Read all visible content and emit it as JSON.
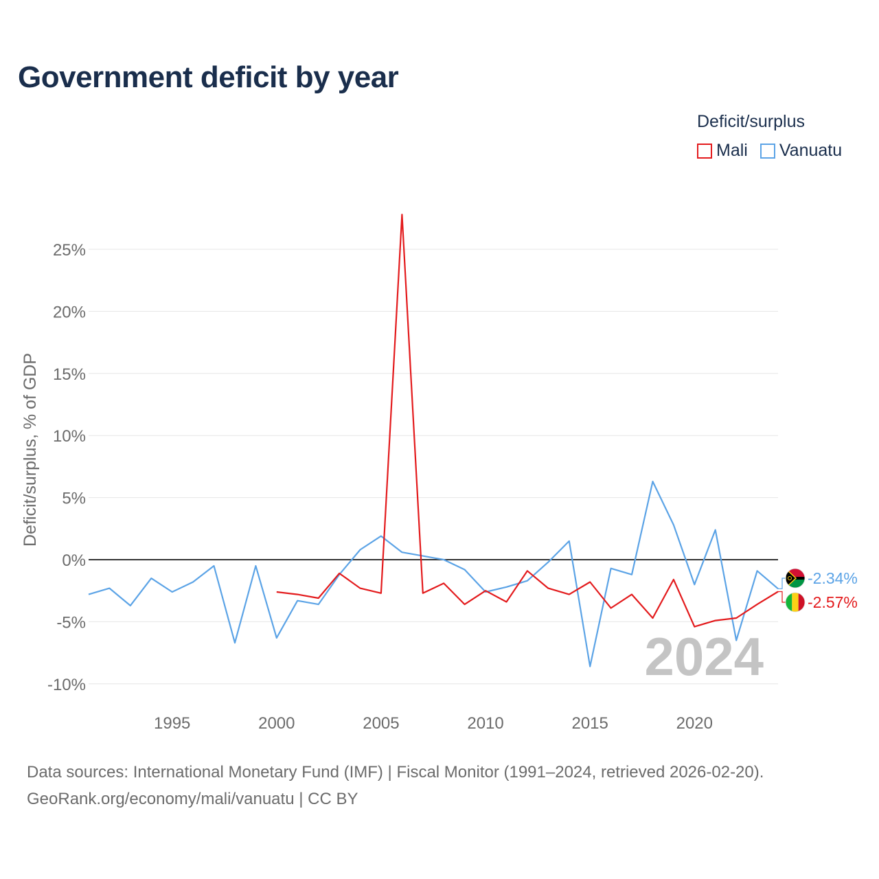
{
  "title": "Government deficit by year",
  "legend": {
    "title": "Deficit/surplus",
    "items": [
      {
        "name": "Mali",
        "color": "#e31a1c"
      },
      {
        "name": "Vanuatu",
        "color": "#5ba3e6"
      }
    ]
  },
  "chart_data": {
    "type": "line",
    "title": "Government deficit by year",
    "xlabel": "",
    "ylabel": "Deficit/surplus, % of GDP",
    "xlim": [
      1991,
      2024
    ],
    "ylim": [
      -10,
      30
    ],
    "x_ticks": [
      1995,
      2000,
      2005,
      2010,
      2015,
      2020
    ],
    "y_ticks": [
      -10,
      -5,
      0,
      5,
      10,
      15,
      20,
      25
    ],
    "y_tick_labels": [
      "-10%",
      "-5%",
      "0%",
      "5%",
      "10%",
      "15%",
      "20%",
      "25%"
    ],
    "zero_line": true,
    "watermark_year": "2024",
    "series": [
      {
        "name": "Vanuatu",
        "color": "#5ba3e6",
        "x": [
          1991,
          1992,
          1993,
          1994,
          1995,
          1996,
          1997,
          1998,
          1999,
          2000,
          2001,
          2002,
          2003,
          2004,
          2005,
          2006,
          2007,
          2008,
          2009,
          2010,
          2011,
          2012,
          2013,
          2014,
          2015,
          2016,
          2017,
          2018,
          2019,
          2020,
          2021,
          2022,
          2023,
          2024
        ],
        "values": [
          -2.8,
          -2.3,
          -3.7,
          -1.5,
          -2.6,
          -1.8,
          -0.5,
          -6.7,
          -0.5,
          -6.3,
          -3.3,
          -3.6,
          -1.2,
          0.8,
          1.9,
          0.6,
          0.3,
          0.0,
          -0.8,
          -2.6,
          -2.2,
          -1.7,
          -0.2,
          1.5,
          -8.6,
          -0.7,
          -1.2,
          6.3,
          2.8,
          -2.0,
          2.4,
          -6.5,
          -0.9,
          -2.34
        ],
        "end_label": "-2.34%"
      },
      {
        "name": "Mali",
        "color": "#e31a1c",
        "x": [
          2000,
          2001,
          2002,
          2003,
          2004,
          2005,
          2006,
          2007,
          2008,
          2009,
          2010,
          2011,
          2012,
          2013,
          2014,
          2015,
          2016,
          2017,
          2018,
          2019,
          2020,
          2021,
          2022,
          2023,
          2024
        ],
        "values": [
          -2.6,
          -2.8,
          -3.1,
          -1.1,
          -2.3,
          -2.7,
          27.8,
          -2.7,
          -1.9,
          -3.6,
          -2.5,
          -3.4,
          -0.9,
          -2.3,
          -2.8,
          -1.8,
          -3.9,
          -2.8,
          -4.7,
          -1.6,
          -5.4,
          -4.9,
          -4.7,
          -3.6,
          -2.57
        ],
        "end_label": "-2.57%"
      }
    ]
  },
  "footer": {
    "source_line": "Data sources: International Monetary Fund (IMF) | Fiscal Monitor (1991–2024, retrieved 2026-02-20).",
    "credit_line": "GeoRank.org/economy/mali/vanuatu | CC BY"
  }
}
